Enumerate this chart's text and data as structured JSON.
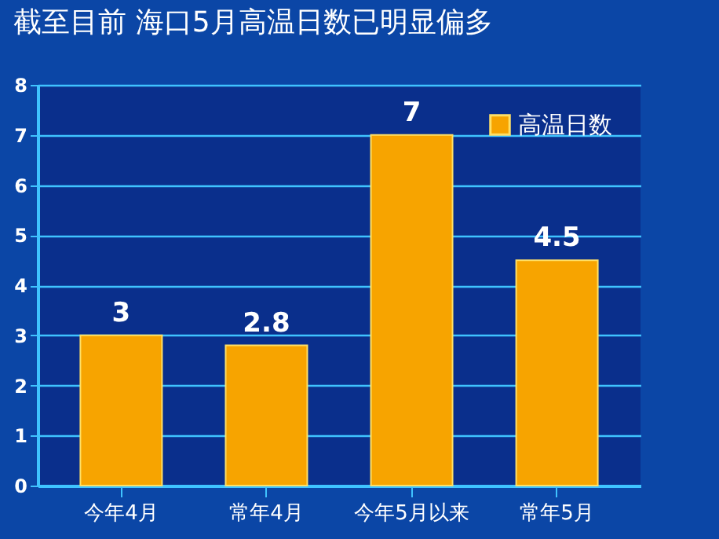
{
  "chart_data": {
    "type": "bar",
    "title": "截至目前 海口5月高温日数已明显偏多",
    "categories": [
      "今年4月",
      "常年4月",
      "今年5月以来",
      "常年5月"
    ],
    "series": [
      {
        "name": "高温日数",
        "color": "#f7a400",
        "values": [
          3,
          2.8,
          7,
          4.5
        ]
      }
    ],
    "ylim": [
      0,
      8
    ],
    "yticks": [
      0,
      1,
      2,
      3,
      4,
      5,
      6,
      7,
      8
    ],
    "grid": "y",
    "legend": "top right",
    "data_labels": true
  }
}
